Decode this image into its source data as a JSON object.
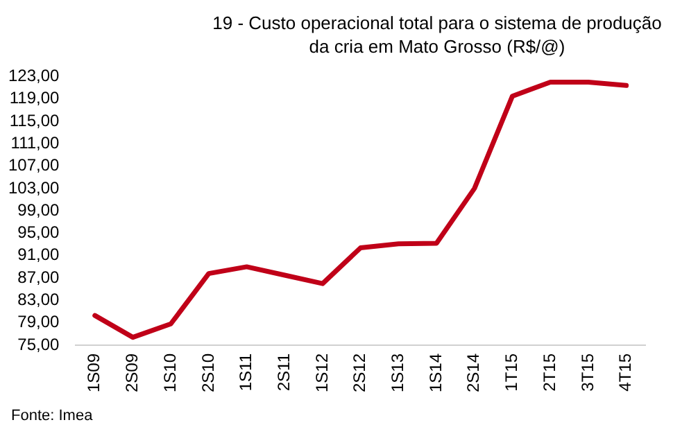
{
  "chart_data": {
    "type": "line",
    "title": "19 - Custo operacional total para o sistema de produção da cria em Mato Grosso (R$/@)",
    "categories": [
      "1S09",
      "2S09",
      "1S10",
      "2S10",
      "1S11",
      "2S11",
      "1S12",
      "2S12",
      "1S13",
      "1S14",
      "2S14",
      "1T15",
      "2T15",
      "3T15",
      "4T15"
    ],
    "series": [
      {
        "color": "#c00018",
        "values": [
          80.3,
          76.4,
          78.8,
          87.8,
          89.0,
          87.5,
          86.0,
          92.4,
          93.1,
          93.2,
          103.0,
          119.5,
          122.0,
          122.0,
          121.4
        ]
      }
    ],
    "ylim": [
      75,
      123
    ],
    "yticks": [
      {
        "value": 75,
        "label": "75,00"
      },
      {
        "value": 79,
        "label": "79,00"
      },
      {
        "value": 83,
        "label": "83,00"
      },
      {
        "value": 87,
        "label": "87,00"
      },
      {
        "value": 91,
        "label": "91,00"
      },
      {
        "value": 95,
        "label": "95,00"
      },
      {
        "value": 99,
        "label": "99,00"
      },
      {
        "value": 103,
        "label": "103,00"
      },
      {
        "value": 107,
        "label": "107,00"
      },
      {
        "value": 111,
        "label": "111,00"
      },
      {
        "value": 115,
        "label": "115,00"
      },
      {
        "value": 119,
        "label": "119,00"
      },
      {
        "value": 123,
        "label": "123,00"
      }
    ],
    "grid": false,
    "legend": false,
    "marker": "none",
    "line_style": "solid",
    "annotations": [
      "Fonte: Imea"
    ]
  }
}
